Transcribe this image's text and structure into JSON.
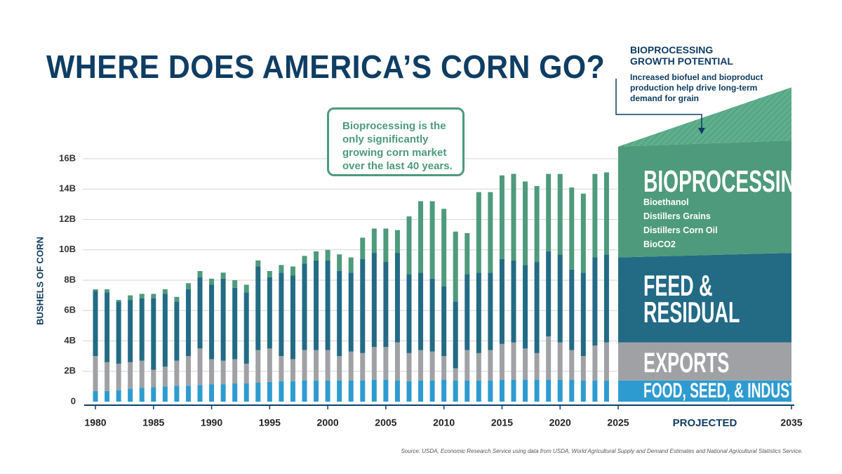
{
  "chart_data": {
    "type": "bar",
    "stacked": true,
    "title": "WHERE DOES AMERICA’S CORN GO?",
    "ylabel": "BUSHELS OF CORN",
    "x": [
      1980,
      1981,
      1982,
      1983,
      1984,
      1985,
      1986,
      1987,
      1988,
      1989,
      1990,
      1991,
      1992,
      1993,
      1994,
      1995,
      1996,
      1997,
      1998,
      1999,
      2000,
      2001,
      2002,
      2003,
      2004,
      2005,
      2006,
      2007,
      2008,
      2009,
      2010,
      2011,
      2012,
      2013,
      2014,
      2015,
      2016,
      2017,
      2018,
      2019,
      2020,
      2021,
      2022,
      2023,
      2024
    ],
    "series": [
      {
        "name": "FOOD, SEED, & INDUSTRIAL",
        "color": "#2e9bd0",
        "values": [
          0.7,
          0.7,
          0.75,
          0.85,
          0.9,
          0.95,
          1.0,
          1.05,
          1.05,
          1.1,
          1.15,
          1.15,
          1.2,
          1.2,
          1.25,
          1.3,
          1.35,
          1.35,
          1.4,
          1.4,
          1.4,
          1.4,
          1.4,
          1.4,
          1.45,
          1.45,
          1.4,
          1.35,
          1.4,
          1.4,
          1.45,
          1.4,
          1.4,
          1.4,
          1.4,
          1.45,
          1.45,
          1.45,
          1.45,
          1.45,
          1.45,
          1.45,
          1.4,
          1.4,
          1.4
        ]
      },
      {
        "name": "EXPORTS",
        "color": "#a0a1a4",
        "values": [
          2.3,
          1.9,
          1.75,
          1.75,
          1.8,
          1.15,
          1.3,
          1.65,
          1.95,
          2.4,
          1.65,
          1.55,
          1.6,
          1.3,
          2.15,
          2.2,
          1.65,
          1.45,
          2.0,
          2.0,
          2.0,
          1.6,
          1.9,
          1.8,
          2.15,
          2.15,
          2.5,
          1.85,
          2.0,
          1.9,
          1.55,
          0.8,
          2.0,
          1.8,
          2.0,
          2.35,
          2.45,
          2.05,
          1.75,
          2.85,
          2.45,
          1.95,
          1.6,
          2.3,
          2.5
        ]
      },
      {
        "name": "FEED & RESIDUAL",
        "color": "#236a85",
        "values": [
          4.3,
          4.6,
          4.1,
          4.1,
          4.1,
          4.7,
          4.8,
          3.9,
          4.4,
          4.7,
          4.9,
          5.4,
          4.7,
          4.7,
          5.5,
          4.7,
          5.5,
          5.5,
          5.7,
          5.9,
          5.9,
          5.6,
          5.2,
          6.2,
          6.2,
          5.6,
          5.9,
          5.2,
          5.1,
          4.8,
          4.6,
          4.4,
          5.0,
          5.3,
          5.1,
          5.6,
          5.4,
          5.5,
          6.0,
          5.6,
          5.8,
          5.3,
          5.5,
          5.8,
          5.8
        ]
      },
      {
        "name": "BIOPROCESSING",
        "color": "#4e9a7c",
        "values": [
          0.1,
          0.2,
          0.1,
          0.3,
          0.3,
          0.3,
          0.3,
          0.3,
          0.4,
          0.4,
          0.4,
          0.4,
          0.5,
          0.5,
          0.4,
          0.4,
          0.5,
          0.6,
          0.5,
          0.6,
          0.7,
          1.1,
          1.0,
          1.4,
          1.6,
          2.2,
          1.5,
          3.8,
          4.7,
          5.1,
          5.1,
          4.6,
          2.7,
          5.3,
          5.3,
          5.5,
          5.7,
          5.5,
          5.0,
          5.1,
          5.3,
          5.4,
          5.2,
          5.5,
          5.4
        ]
      }
    ],
    "ylim": [
      0,
      16
    ],
    "yticks": [
      0,
      {
        "value": 2,
        "label": "2B"
      },
      {
        "value": 4,
        "label": "4B"
      },
      {
        "value": 6,
        "label": "6B"
      },
      {
        "value": 8,
        "label": "8B"
      },
      {
        "value": 10,
        "label": "10B"
      },
      {
        "value": 12,
        "label": "12B"
      },
      {
        "value": 14,
        "label": "14B"
      },
      {
        "value": 16,
        "label": "16B"
      }
    ],
    "xlim": [
      1980,
      2035
    ],
    "xticks": [
      1980,
      1985,
      1990,
      1995,
      2000,
      2005,
      2010,
      2015,
      2020,
      2025,
      2035
    ],
    "grid": true,
    "projection": {
      "label": "PROJECTED",
      "x": [
        2025,
        2035
      ],
      "series": [
        {
          "values": [
            1.4,
            1.4
          ]
        },
        {
          "values": [
            2.5,
            2.5
          ]
        },
        {
          "values": [
            5.6,
            5.9
          ]
        },
        {
          "values": [
            7.3,
            7.4
          ]
        }
      ],
      "growth_potential": {
        "values": [
          0,
          3.5
        ],
        "color": "#6fb596"
      }
    },
    "bioprocessing_uses": [
      "Bioethanol",
      "Distillers Grains",
      "Distillers Corn Oil",
      "BioCO2"
    ],
    "callout": "Bioprocessing is the only significantly growing corn market over the last 40 years.",
    "note": {
      "title": "BIOPROCESSING GROWTH POTENTIAL",
      "text": "Increased biofuel and bioproduct production help drive long-term demand for grain"
    },
    "source": "Source: USDA, Economic Research Service using data from USDA, World Agricultural Supply and Demand Estimates and  National Agricultural Statistics Service."
  }
}
